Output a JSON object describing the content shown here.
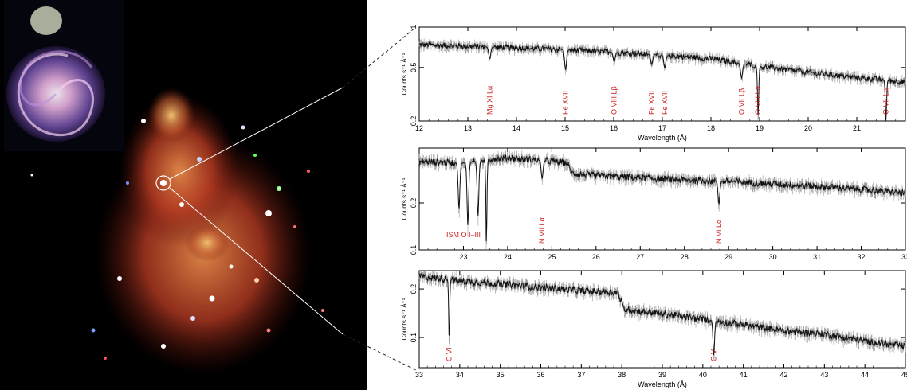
{
  "colors": {
    "background": "#ffffff",
    "image_background": "#000000",
    "spectrum_line": "#111111",
    "line_label": "#cc1f1f",
    "connector_line": "#ffffff"
  },
  "image": {
    "description_icon": "galaxy-xray-image",
    "inset_icon": "spiral-galaxy-optical-inset"
  },
  "chart_data": [
    {
      "type": "line",
      "xlabel": "Wavelength (Å)",
      "ylabel": "Counts s⁻¹ Å⁻¹",
      "xlim": [
        12,
        22
      ],
      "ylim": [
        0.2,
        1
      ],
      "yscale": "log",
      "xticks": [
        "12",
        "13",
        "14",
        "15",
        "16",
        "17",
        "18",
        "19",
        "20",
        "21"
      ],
      "yticks": [
        {
          "v": 0.2,
          "label": "0.2"
        },
        {
          "v": 0.5,
          "label": "0.5"
        },
        {
          "v": 1,
          "label": "1"
        }
      ],
      "continuum": [
        [
          12,
          0.74
        ],
        [
          13,
          0.72
        ],
        [
          14,
          0.7
        ],
        [
          15,
          0.68
        ],
        [
          16,
          0.65
        ],
        [
          17,
          0.62
        ],
        [
          18,
          0.58
        ],
        [
          19,
          0.51
        ],
        [
          20,
          0.46
        ],
        [
          21,
          0.42
        ],
        [
          22,
          0.39
        ]
      ],
      "absorption": [
        {
          "x": 13.45,
          "depth": 0.13,
          "width": 0.03
        },
        {
          "x": 15.01,
          "depth": 0.2,
          "width": 0.03
        },
        {
          "x": 16.01,
          "depth": 0.1,
          "width": 0.03
        },
        {
          "x": 16.78,
          "depth": 0.1,
          "width": 0.03
        },
        {
          "x": 17.05,
          "depth": 0.12,
          "width": 0.03
        },
        {
          "x": 18.63,
          "depth": 0.12,
          "width": 0.03
        },
        {
          "x": 18.97,
          "depth": 0.3,
          "width": 0.02
        },
        {
          "x": 21.6,
          "depth": 0.2,
          "width": 0.02
        }
      ],
      "labels": [
        {
          "x": 13.45,
          "text": "Mg XI Lα"
        },
        {
          "x": 15.01,
          "text": "Fe XVII"
        },
        {
          "x": 16.01,
          "text": "O VIII Lβ"
        },
        {
          "x": 16.78,
          "text": "Fe XVII"
        },
        {
          "x": 17.05,
          "text": "Fe XVII"
        },
        {
          "x": 18.63,
          "text": "O VII Lβ"
        },
        {
          "x": 18.97,
          "text": "O VIII Lα"
        },
        {
          "x": 21.6,
          "text": "O VII Lα"
        }
      ]
    },
    {
      "type": "line",
      "xlabel": "",
      "ylabel": "Counts s⁻¹ Å⁻¹",
      "xlim": [
        22,
        33
      ],
      "ylim": [
        0.1,
        0.45
      ],
      "yscale": "log",
      "xticks": [
        "23",
        "24",
        "25",
        "26",
        "27",
        "28",
        "29",
        "30",
        "31",
        "32",
        "33"
      ],
      "yticks": [
        {
          "v": 0.1,
          "label": "0.1"
        },
        {
          "v": 0.2,
          "label": "0.2"
        }
      ],
      "continuum": [
        [
          22,
          0.37
        ],
        [
          23,
          0.36
        ],
        [
          23.5,
          0.38
        ],
        [
          24,
          0.39
        ],
        [
          25,
          0.37
        ],
        [
          25.35,
          0.36
        ],
        [
          25.45,
          0.31
        ],
        [
          26,
          0.3
        ],
        [
          27,
          0.29
        ],
        [
          28,
          0.28
        ],
        [
          29,
          0.275
        ],
        [
          30,
          0.265
        ],
        [
          31,
          0.255
        ],
        [
          32,
          0.245
        ],
        [
          33,
          0.23
        ]
      ],
      "absorption": [
        {
          "x": 22.9,
          "depth": 0.18,
          "width": 0.03
        },
        {
          "x": 23.1,
          "depth": 0.22,
          "width": 0.03
        },
        {
          "x": 23.33,
          "depth": 0.21,
          "width": 0.03
        },
        {
          "x": 23.52,
          "depth": 0.28,
          "width": 0.02
        },
        {
          "x": 24.78,
          "depth": 0.09,
          "width": 0.03
        },
        {
          "x": 28.78,
          "depth": 0.08,
          "width": 0.03
        }
      ],
      "labels": [
        {
          "x": 23.0,
          "text": "ISM O I–III",
          "horizontal": true
        },
        {
          "x": 24.78,
          "text": "N VII Lα"
        },
        {
          "x": 28.78,
          "text": "N VI Lα"
        }
      ]
    },
    {
      "type": "line",
      "xlabel": "Wavelength (Å)",
      "ylabel": "Counts s⁻¹ Å⁻¹",
      "xlim": [
        33,
        45
      ],
      "ylim": [
        0.065,
        0.26
      ],
      "yscale": "log",
      "xticks": [
        "33",
        "34",
        "35",
        "36",
        "37",
        "38",
        "39",
        "40",
        "41",
        "42",
        "43",
        "44",
        "45"
      ],
      "yticks": [
        {
          "v": 0.1,
          "label": "0.1"
        },
        {
          "v": 0.2,
          "label": "0.2"
        }
      ],
      "continuum": [
        [
          33,
          0.24
        ],
        [
          34,
          0.225
        ],
        [
          35,
          0.215
        ],
        [
          36,
          0.205
        ],
        [
          37,
          0.195
        ],
        [
          37.9,
          0.19
        ],
        [
          38.05,
          0.15
        ],
        [
          39,
          0.14
        ],
        [
          40,
          0.13
        ],
        [
          41,
          0.12
        ],
        [
          42,
          0.11
        ],
        [
          43,
          0.105
        ],
        [
          44,
          0.095
        ],
        [
          45,
          0.088
        ]
      ],
      "absorption": [
        {
          "x": 33.74,
          "depth": 0.14,
          "width": 0.02
        },
        {
          "x": 40.27,
          "depth": 0.05,
          "width": 0.03
        }
      ],
      "labels": [
        {
          "x": 33.74,
          "text": "C VI"
        },
        {
          "x": 40.27,
          "text": "C V"
        }
      ]
    }
  ]
}
